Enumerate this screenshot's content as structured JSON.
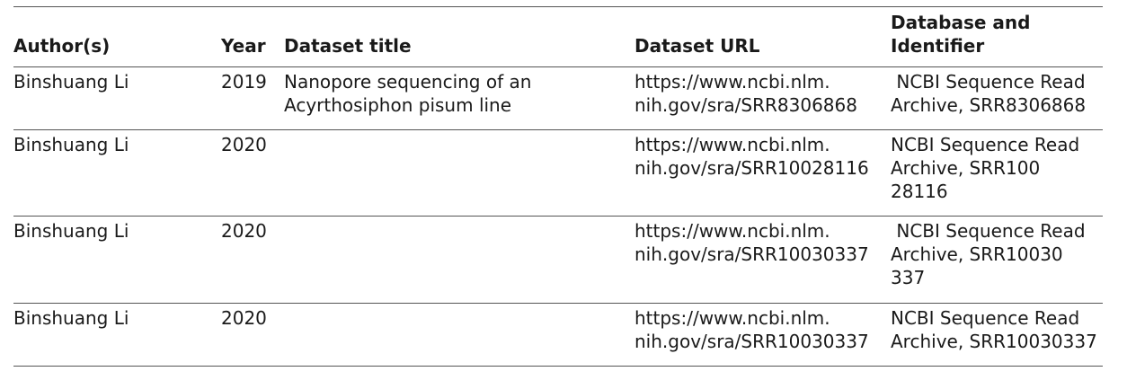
{
  "headers": {
    "author": "Author(s)",
    "year": "Year",
    "title": "Dataset title",
    "url": "Dataset URL",
    "db_line1": "Database and",
    "db_line2": "Identifier"
  },
  "rows": [
    {
      "author": "Binshuang Li",
      "year": "2019",
      "title_line1": "Nanopore sequencing of an",
      "title_line2": "Acyrthosiphon pisum line",
      "url_line1": "https://www.ncbi.nlm.",
      "url_line2": "nih.gov/sra/SRR8306868",
      "db_line1": " NCBI Sequence Read",
      "db_line2": "Archive, SRR8306868",
      "db_line3": ""
    },
    {
      "author": "Binshuang Li",
      "year": "2020",
      "title_line1": "",
      "title_line2": "",
      "url_line1": "https://www.ncbi.nlm.",
      "url_line2": "nih.gov/sra/SRR10028116",
      "db_line1": "NCBI Sequence Read",
      "db_line2": "Archive, SRR100",
      "db_line3": "28116"
    },
    {
      "author": "Binshuang Li",
      "year": "2020",
      "title_line1": "",
      "title_line2": "",
      "url_line1": "https://www.ncbi.nlm.",
      "url_line2": "nih.gov/sra/SRR10030337",
      "db_line1": " NCBI Sequence Read",
      "db_line2": "Archive, SRR10030",
      "db_line3": "337"
    },
    {
      "author": "Binshuang Li",
      "year": "2020",
      "title_line1": "",
      "title_line2": "",
      "url_line1": "https://www.ncbi.nlm.",
      "url_line2": "nih.gov/sra/SRR10030337",
      "db_line1": "NCBI Sequence Read",
      "db_line2": "Archive, SRR10030337",
      "db_line3": ""
    }
  ]
}
